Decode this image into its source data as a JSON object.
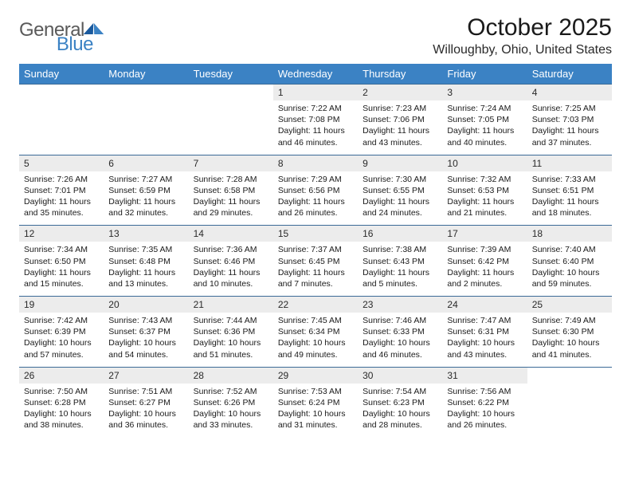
{
  "logo": {
    "word1": "General",
    "word2": "Blue"
  },
  "title": "October 2025",
  "location": "Willoughby, Ohio, United States",
  "colors": {
    "header_bg": "#3b82c4",
    "header_text": "#ffffff",
    "week_rule": "#3b6a96",
    "daynum_bg": "#ececec",
    "page_bg": "#ffffff",
    "text": "#1a1a1a",
    "logo_gray": "#5a5a5a",
    "logo_blue": "#3b82c4"
  },
  "day_names": [
    "Sunday",
    "Monday",
    "Tuesday",
    "Wednesday",
    "Thursday",
    "Friday",
    "Saturday"
  ],
  "weeks": [
    [
      null,
      null,
      null,
      {
        "n": "1",
        "sr": "7:22 AM",
        "ss": "7:08 PM",
        "dl": "11 hours and 46 minutes."
      },
      {
        "n": "2",
        "sr": "7:23 AM",
        "ss": "7:06 PM",
        "dl": "11 hours and 43 minutes."
      },
      {
        "n": "3",
        "sr": "7:24 AM",
        "ss": "7:05 PM",
        "dl": "11 hours and 40 minutes."
      },
      {
        "n": "4",
        "sr": "7:25 AM",
        "ss": "7:03 PM",
        "dl": "11 hours and 37 minutes."
      }
    ],
    [
      {
        "n": "5",
        "sr": "7:26 AM",
        "ss": "7:01 PM",
        "dl": "11 hours and 35 minutes."
      },
      {
        "n": "6",
        "sr": "7:27 AM",
        "ss": "6:59 PM",
        "dl": "11 hours and 32 minutes."
      },
      {
        "n": "7",
        "sr": "7:28 AM",
        "ss": "6:58 PM",
        "dl": "11 hours and 29 minutes."
      },
      {
        "n": "8",
        "sr": "7:29 AM",
        "ss": "6:56 PM",
        "dl": "11 hours and 26 minutes."
      },
      {
        "n": "9",
        "sr": "7:30 AM",
        "ss": "6:55 PM",
        "dl": "11 hours and 24 minutes."
      },
      {
        "n": "10",
        "sr": "7:32 AM",
        "ss": "6:53 PM",
        "dl": "11 hours and 21 minutes."
      },
      {
        "n": "11",
        "sr": "7:33 AM",
        "ss": "6:51 PM",
        "dl": "11 hours and 18 minutes."
      }
    ],
    [
      {
        "n": "12",
        "sr": "7:34 AM",
        "ss": "6:50 PM",
        "dl": "11 hours and 15 minutes."
      },
      {
        "n": "13",
        "sr": "7:35 AM",
        "ss": "6:48 PM",
        "dl": "11 hours and 13 minutes."
      },
      {
        "n": "14",
        "sr": "7:36 AM",
        "ss": "6:46 PM",
        "dl": "11 hours and 10 minutes."
      },
      {
        "n": "15",
        "sr": "7:37 AM",
        "ss": "6:45 PM",
        "dl": "11 hours and 7 minutes."
      },
      {
        "n": "16",
        "sr": "7:38 AM",
        "ss": "6:43 PM",
        "dl": "11 hours and 5 minutes."
      },
      {
        "n": "17",
        "sr": "7:39 AM",
        "ss": "6:42 PM",
        "dl": "11 hours and 2 minutes."
      },
      {
        "n": "18",
        "sr": "7:40 AM",
        "ss": "6:40 PM",
        "dl": "10 hours and 59 minutes."
      }
    ],
    [
      {
        "n": "19",
        "sr": "7:42 AM",
        "ss": "6:39 PM",
        "dl": "10 hours and 57 minutes."
      },
      {
        "n": "20",
        "sr": "7:43 AM",
        "ss": "6:37 PM",
        "dl": "10 hours and 54 minutes."
      },
      {
        "n": "21",
        "sr": "7:44 AM",
        "ss": "6:36 PM",
        "dl": "10 hours and 51 minutes."
      },
      {
        "n": "22",
        "sr": "7:45 AM",
        "ss": "6:34 PM",
        "dl": "10 hours and 49 minutes."
      },
      {
        "n": "23",
        "sr": "7:46 AM",
        "ss": "6:33 PM",
        "dl": "10 hours and 46 minutes."
      },
      {
        "n": "24",
        "sr": "7:47 AM",
        "ss": "6:31 PM",
        "dl": "10 hours and 43 minutes."
      },
      {
        "n": "25",
        "sr": "7:49 AM",
        "ss": "6:30 PM",
        "dl": "10 hours and 41 minutes."
      }
    ],
    [
      {
        "n": "26",
        "sr": "7:50 AM",
        "ss": "6:28 PM",
        "dl": "10 hours and 38 minutes."
      },
      {
        "n": "27",
        "sr": "7:51 AM",
        "ss": "6:27 PM",
        "dl": "10 hours and 36 minutes."
      },
      {
        "n": "28",
        "sr": "7:52 AM",
        "ss": "6:26 PM",
        "dl": "10 hours and 33 minutes."
      },
      {
        "n": "29",
        "sr": "7:53 AM",
        "ss": "6:24 PM",
        "dl": "10 hours and 31 minutes."
      },
      {
        "n": "30",
        "sr": "7:54 AM",
        "ss": "6:23 PM",
        "dl": "10 hours and 28 minutes."
      },
      {
        "n": "31",
        "sr": "7:56 AM",
        "ss": "6:22 PM",
        "dl": "10 hours and 26 minutes."
      },
      null
    ]
  ],
  "labels": {
    "sunrise": "Sunrise:",
    "sunset": "Sunset:",
    "daylight": "Daylight:"
  },
  "typography": {
    "month_title_size": 30,
    "location_size": 16,
    "dow_size": 13,
    "daynum_size": 12,
    "detail_size": 10.5
  }
}
